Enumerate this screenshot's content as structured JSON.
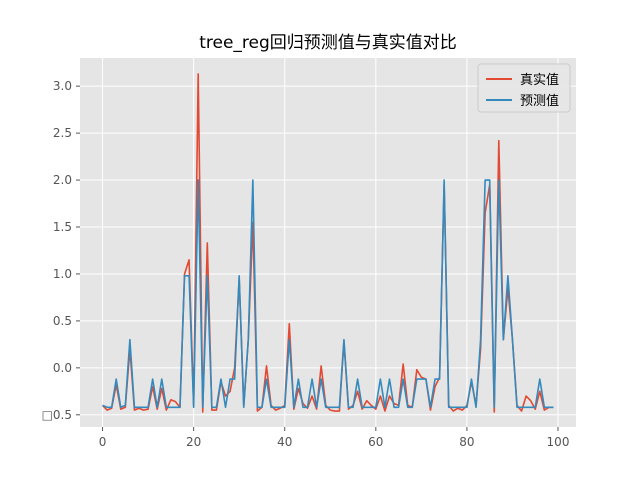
{
  "chart_data": {
    "type": "line",
    "title": "tree_reg回归预测值与真实值对比",
    "xlabel": "",
    "ylabel": "",
    "xlim": [
      -4.95,
      103.95
    ],
    "ylim": [
      -0.63,
      3.3
    ],
    "x_ticks": [
      0,
      20,
      40,
      60,
      80,
      100
    ],
    "x_tick_labels": [
      "0",
      "20",
      "40",
      "60",
      "80",
      "100"
    ],
    "y_ticks": [
      -0.5,
      0.0,
      0.5,
      1.0,
      1.5,
      2.0,
      2.5,
      3.0
    ],
    "y_tick_labels": [
      "□0.5",
      "0.0",
      "0.5",
      "1.0",
      "1.5",
      "2.0",
      "2.5",
      "3.0"
    ],
    "grid": true,
    "legend_position": "top-right",
    "series": [
      {
        "name": "真实值",
        "color": "#E24A33",
        "values": [
          -0.4,
          -0.45,
          -0.43,
          -0.18,
          -0.44,
          -0.42,
          0.2,
          -0.45,
          -0.43,
          -0.45,
          -0.44,
          -0.2,
          -0.44,
          -0.22,
          -0.45,
          -0.34,
          -0.36,
          -0.42,
          1.0,
          1.15,
          -0.4,
          3.13,
          -0.47,
          1.33,
          -0.45,
          -0.45,
          -0.15,
          -0.3,
          -0.25,
          0.0,
          0.95,
          -0.4,
          0.3,
          1.55,
          -0.46,
          -0.42,
          0.02,
          -0.4,
          -0.45,
          -0.43,
          -0.4,
          0.47,
          -0.44,
          -0.22,
          -0.38,
          -0.43,
          -0.3,
          -0.44,
          0.02,
          -0.4,
          -0.45,
          -0.46,
          -0.46,
          0.28,
          -0.44,
          -0.4,
          -0.25,
          -0.44,
          -0.35,
          -0.4,
          -0.44,
          -0.3,
          -0.46,
          -0.3,
          -0.38,
          -0.4,
          0.04,
          -0.4,
          -0.42,
          -0.02,
          -0.1,
          -0.12,
          -0.45,
          -0.2,
          -0.1,
          1.95,
          -0.4,
          -0.46,
          -0.43,
          -0.45,
          -0.4,
          -0.15,
          -0.4,
          0.2,
          1.65,
          1.95,
          -0.47,
          2.42,
          0.3,
          0.85,
          0.3,
          -0.4,
          -0.46,
          -0.3,
          -0.35,
          -0.44,
          -0.25,
          -0.45,
          -0.42,
          -0.42
        ]
      },
      {
        "name": "预测值",
        "color": "#348ABD",
        "values": [
          -0.4,
          -0.42,
          -0.42,
          -0.12,
          -0.42,
          -0.4,
          0.3,
          -0.42,
          -0.42,
          -0.42,
          -0.42,
          -0.12,
          -0.42,
          -0.12,
          -0.42,
          -0.42,
          -0.42,
          -0.42,
          0.98,
          0.98,
          -0.42,
          2.0,
          -0.42,
          0.98,
          -0.42,
          -0.42,
          -0.12,
          -0.42,
          -0.12,
          -0.12,
          0.98,
          -0.42,
          0.3,
          2.0,
          -0.42,
          -0.42,
          -0.12,
          -0.42,
          -0.42,
          -0.42,
          -0.42,
          0.3,
          -0.42,
          -0.12,
          -0.42,
          -0.42,
          -0.12,
          -0.42,
          -0.12,
          -0.42,
          -0.42,
          -0.42,
          -0.42,
          0.3,
          -0.42,
          -0.42,
          -0.12,
          -0.42,
          -0.42,
          -0.42,
          -0.42,
          -0.12,
          -0.42,
          -0.12,
          -0.42,
          -0.42,
          -0.12,
          -0.42,
          -0.42,
          -0.12,
          -0.12,
          -0.12,
          -0.42,
          -0.12,
          -0.12,
          2.0,
          -0.42,
          -0.42,
          -0.42,
          -0.42,
          -0.42,
          -0.12,
          -0.42,
          0.3,
          2.0,
          2.0,
          -0.42,
          2.0,
          0.3,
          0.98,
          0.3,
          -0.42,
          -0.42,
          -0.42,
          -0.42,
          -0.42,
          -0.12,
          -0.42,
          -0.42,
          -0.42
        ]
      }
    ]
  }
}
